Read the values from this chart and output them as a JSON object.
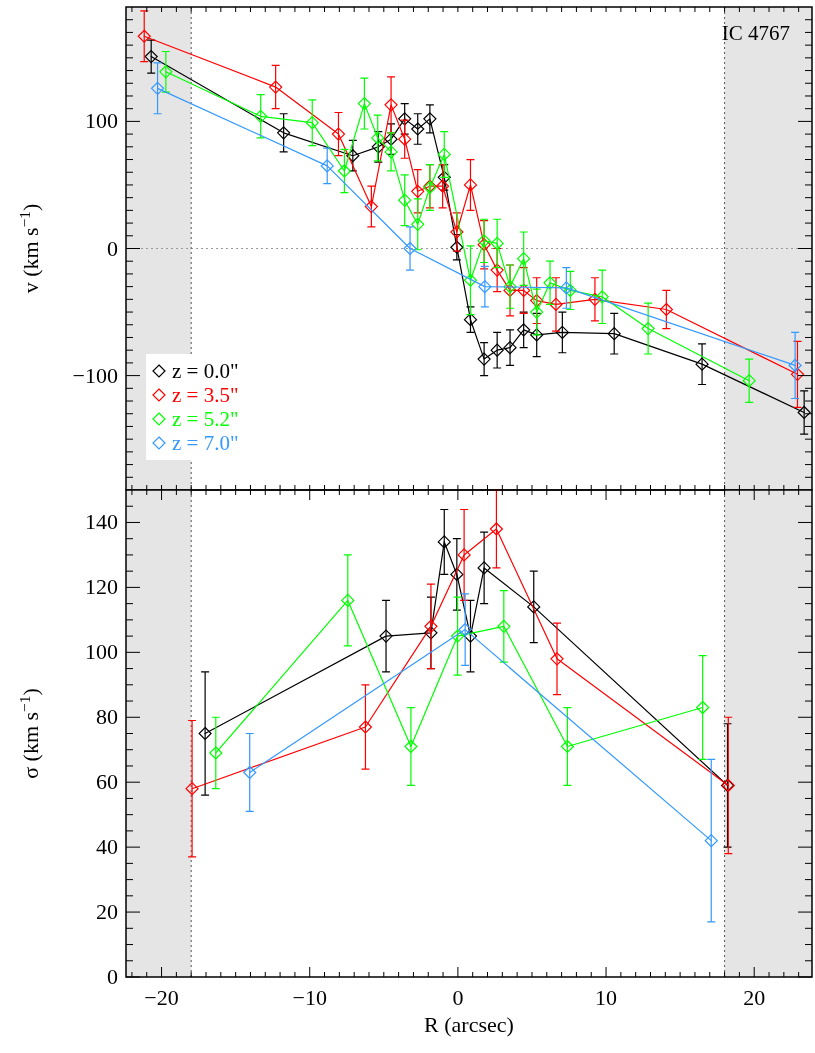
{
  "chart_data": [
    {
      "type": "line",
      "ylabel": "v (km s$^{−1}$)",
      "annotations": [
        "IC 4767"
      ],
      "xlim": [
        -22.4,
        23.9
      ],
      "ylim": [
        -190,
        190
      ],
      "tick_labels": "y",
      "marker": "diamond",
      "line_style": "solid",
      "legend": "bottom left",
      "xticks": [
        {
          "value": -22,
          "label": null
        },
        {
          "value": -21,
          "label": null
        },
        {
          "value": -20,
          "label": null
        },
        {
          "value": -19,
          "label": null
        },
        {
          "value": -18,
          "label": null
        },
        {
          "value": -17,
          "label": null
        },
        {
          "value": -16,
          "label": null
        },
        {
          "value": -15,
          "label": null
        },
        {
          "value": -14,
          "label": null
        },
        {
          "value": -13,
          "label": null
        },
        {
          "value": -12,
          "label": null
        },
        {
          "value": -11,
          "label": null
        },
        {
          "value": -10,
          "label": null
        },
        {
          "value": -9,
          "label": null
        },
        {
          "value": -8,
          "label": null
        },
        {
          "value": -7,
          "label": null
        },
        {
          "value": -6,
          "label": null
        },
        {
          "value": -5,
          "label": null
        },
        {
          "value": -4,
          "label": null
        },
        {
          "value": -3,
          "label": null
        },
        {
          "value": -2,
          "label": null
        },
        {
          "value": -1,
          "label": null
        },
        {
          "value": 0,
          "label": null
        },
        {
          "value": 1,
          "label": null
        },
        {
          "value": 2,
          "label": null
        },
        {
          "value": 3,
          "label": null
        },
        {
          "value": 4,
          "label": null
        },
        {
          "value": 5,
          "label": null
        },
        {
          "value": 6,
          "label": null
        },
        {
          "value": 7,
          "label": null
        },
        {
          "value": 8,
          "label": null
        },
        {
          "value": 9,
          "label": null
        },
        {
          "value": 10,
          "label": null
        },
        {
          "value": 11,
          "label": null
        },
        {
          "value": 12,
          "label": null
        },
        {
          "value": 13,
          "label": null
        },
        {
          "value": 14,
          "label": null
        },
        {
          "value": 15,
          "label": null
        },
        {
          "value": 16,
          "label": null
        },
        {
          "value": 17,
          "label": null
        },
        {
          "value": 18,
          "label": null
        },
        {
          "value": 19,
          "label": null
        },
        {
          "value": 20,
          "label": null
        },
        {
          "value": 21,
          "label": null
        },
        {
          "value": 22,
          "label": null
        },
        {
          "value": 23,
          "label": null
        }
      ],
      "yticks": [
        {
          "value": -180,
          "label": null
        },
        {
          "value": -170,
          "label": null
        },
        {
          "value": -160,
          "label": null
        },
        {
          "value": -150,
          "label": null
        },
        {
          "value": -140,
          "label": null
        },
        {
          "value": -130,
          "label": null
        },
        {
          "value": -120,
          "label": null
        },
        {
          "value": -110,
          "label": null
        },
        {
          "value": -100,
          "label": "−100"
        },
        {
          "value": -90,
          "label": null
        },
        {
          "value": -80,
          "label": null
        },
        {
          "value": -70,
          "label": null
        },
        {
          "value": -60,
          "label": null
        },
        {
          "value": -50,
          "label": null
        },
        {
          "value": -40,
          "label": null
        },
        {
          "value": -30,
          "label": null
        },
        {
          "value": -20,
          "label": null
        },
        {
          "value": -10,
          "label": null
        },
        0,
        {
          "value": 10,
          "label": null
        },
        {
          "value": 20,
          "label": null
        },
        {
          "value": 30,
          "label": null
        },
        {
          "value": 40,
          "label": null
        },
        {
          "value": 50,
          "label": null
        },
        {
          "value": 60,
          "label": null
        },
        {
          "value": 70,
          "label": null
        },
        {
          "value": 80,
          "label": null
        },
        {
          "value": 90,
          "label": null
        },
        100,
        {
          "value": 110,
          "label": null
        },
        {
          "value": 120,
          "label": null
        },
        {
          "value": 130,
          "label": null
        },
        {
          "value": 140,
          "label": null
        },
        {
          "value": 150,
          "label": null
        },
        {
          "value": 160,
          "label": null
        },
        {
          "value": 170,
          "label": null
        },
        {
          "value": 180,
          "label": null
        }
      ],
      "bands": [
        {
          "axis": "x",
          "from": -22.4,
          "to": -18,
          "color": "#e5e5e5"
        },
        {
          "axis": "x",
          "from": 18,
          "to": 23.9,
          "color": "#e5e5e5"
        }
      ],
      "ref_lines": [
        {
          "axis": "y",
          "value": 0,
          "color": "#999999",
          "line_style": "dotted"
        },
        {
          "axis": "x",
          "value": -18,
          "color": "#555555",
          "line_style": "dotted"
        },
        {
          "axis": "x",
          "value": 18,
          "color": "#555555",
          "line_style": "dotted"
        }
      ],
      "series": [
        {
          "name": "z = 0.0\"",
          "color": "#000000",
          "x": [
            -20.7,
            -11.76,
            -7.09,
            -5.37,
            -4.51,
            -3.59,
            -2.71,
            -1.89,
            -0.92,
            -0.07,
            0.85,
            1.77,
            2.65,
            3.52,
            4.44,
            5.32,
            7.05,
            10.55,
            16.48,
            23.37
          ],
          "values": [
            151,
            91,
            73,
            80,
            86,
            102,
            94,
            102,
            56,
            1,
            -56,
            -87,
            -80,
            -78,
            -64,
            -68,
            -66,
            -67,
            -91,
            -129
          ],
          "errors": [
            13,
            15,
            12,
            12,
            12,
            12,
            12,
            11,
            10,
            10,
            10,
            13,
            14,
            14,
            14,
            17,
            16,
            16,
            16,
            17
          ]
        },
        {
          "name": "z = 3.5\"",
          "color": "#ff0000",
          "x": [
            -21.17,
            -12.3,
            -8.06,
            -5.84,
            -4.51,
            -3.59,
            -2.71,
            -1.89,
            -1.03,
            -0.07,
            0.85,
            1.77,
            2.65,
            3.52,
            4.44,
            5.32,
            6.62,
            9.25,
            14.07,
            22.92
          ],
          "values": [
            167,
            127,
            90,
            33,
            113,
            86,
            45,
            49,
            49,
            13,
            50,
            3,
            -17,
            -33,
            -33,
            -41,
            -44,
            -40,
            -48,
            -99
          ],
          "errors": [
            20,
            17,
            17,
            16,
            22,
            15,
            17,
            17,
            17,
            15,
            20,
            19,
            17,
            20,
            18,
            18,
            21,
            17,
            15,
            26
          ]
        },
        {
          "name": "z = 5.2\"",
          "color": "#00ff00",
          "x": [
            -19.71,
            -13.31,
            -9.83,
            -7.66,
            -6.31,
            -5.41,
            -4.51,
            -3.59,
            -2.71,
            -1.89,
            -0.92,
            0.85,
            1.77,
            2.65,
            3.52,
            4.44,
            5.32,
            6.22,
            7.59,
            9.74,
            12.84,
            19.66
          ],
          "values": [
            139,
            104,
            99,
            61,
            114,
            87,
            76,
            38,
            19,
            48,
            74,
            -25,
            6,
            4,
            -30,
            -8,
            -50,
            -27,
            -33,
            -38,
            -63,
            -104
          ],
          "errors": [
            16,
            17,
            18,
            17,
            20,
            18,
            15,
            20,
            20,
            18,
            18,
            27,
            17,
            19,
            17,
            21,
            18,
            17,
            15,
            21,
            20,
            17
          ]
        },
        {
          "name": "z = 7.0\"",
          "color": "#3399ff",
          "x": [
            -20.27,
            -8.82,
            -3.23,
            1.82,
            7.32,
            22.76
          ],
          "values": [
            126,
            65,
            0,
            -30,
            -31,
            -92
          ],
          "errors": [
            20,
            14,
            17,
            16,
            16,
            26
          ]
        }
      ]
    },
    {
      "type": "line",
      "xlabel": "R (arcsec)",
      "ylabel": "σ (km s$^{−1}$)",
      "xlim": [
        -22.4,
        23.9
      ],
      "ylim": [
        0,
        150
      ],
      "marker": "diamond",
      "line_style": "solid",
      "ref_lines": [
        {
          "axis": "x",
          "value": -18,
          "color": "#555555",
          "line_style": "dotted"
        },
        {
          "axis": "x",
          "value": 18,
          "color": "#555555",
          "line_style": "dotted"
        }
      ],
      "xticks": [
        {
          "value": -22,
          "label": null
        },
        {
          "value": -21,
          "label": null
        },
        {
          "value": -20,
          "label": "−20"
        },
        {
          "value": -19,
          "label": null
        },
        {
          "value": -18,
          "label": null
        },
        {
          "value": -17,
          "label": null
        },
        {
          "value": -16,
          "label": null
        },
        {
          "value": -15,
          "label": null
        },
        {
          "value": -14,
          "label": null
        },
        {
          "value": -13,
          "label": null
        },
        {
          "value": -12,
          "label": null
        },
        {
          "value": -11,
          "label": null
        },
        {
          "value": -10,
          "label": "−10"
        },
        {
          "value": -9,
          "label": null
        },
        {
          "value": -8,
          "label": null
        },
        {
          "value": -7,
          "label": null
        },
        {
          "value": -6,
          "label": null
        },
        {
          "value": -5,
          "label": null
        },
        {
          "value": -4,
          "label": null
        },
        {
          "value": -3,
          "label": null
        },
        {
          "value": -2,
          "label": null
        },
        {
          "value": -1,
          "label": null
        },
        0,
        {
          "value": 1,
          "label": null
        },
        {
          "value": 2,
          "label": null
        },
        {
          "value": 3,
          "label": null
        },
        {
          "value": 4,
          "label": null
        },
        {
          "value": 5,
          "label": null
        },
        {
          "value": 6,
          "label": null
        },
        {
          "value": 7,
          "label": null
        },
        {
          "value": 8,
          "label": null
        },
        {
          "value": 9,
          "label": null
        },
        10,
        {
          "value": 11,
          "label": null
        },
        {
          "value": 12,
          "label": null
        },
        {
          "value": 13,
          "label": null
        },
        {
          "value": 14,
          "label": null
        },
        {
          "value": 15,
          "label": null
        },
        {
          "value": 16,
          "label": null
        },
        {
          "value": 17,
          "label": null
        },
        {
          "value": 18,
          "label": null
        },
        {
          "value": 19,
          "label": null
        },
        20,
        {
          "value": 21,
          "label": null
        },
        {
          "value": 22,
          "label": null
        },
        {
          "value": 23,
          "label": null
        }
      ],
      "yticks": [
        0,
        {
          "value": 5,
          "label": null
        },
        {
          "value": 10,
          "label": null
        },
        {
          "value": 15,
          "label": null
        },
        20,
        {
          "value": 25,
          "label": null
        },
        {
          "value": 30,
          "label": null
        },
        {
          "value": 35,
          "label": null
        },
        40,
        {
          "value": 45,
          "label": null
        },
        {
          "value": 50,
          "label": null
        },
        {
          "value": 55,
          "label": null
        },
        60,
        {
          "value": 65,
          "label": null
        },
        {
          "value": 70,
          "label": null
        },
        {
          "value": 75,
          "label": null
        },
        80,
        {
          "value": 85,
          "label": null
        },
        {
          "value": 90,
          "label": null
        },
        {
          "value": 95,
          "label": null
        },
        100,
        {
          "value": 105,
          "label": null
        },
        {
          "value": 110,
          "label": null
        },
        {
          "value": 115,
          "label": null
        },
        120,
        {
          "value": 125,
          "label": null
        },
        {
          "value": 130,
          "label": null
        },
        {
          "value": 135,
          "label": null
        },
        140,
        {
          "value": 145,
          "label": null
        }
      ],
      "bands": [
        {
          "axis": "x",
          "from": -22.4,
          "to": -18,
          "color": "#e5e5e5"
        },
        {
          "axis": "x",
          "from": 18,
          "to": 23.9,
          "color": "#e5e5e5"
        }
      ],
      "series": [
        {
          "color": "#000000",
          "x": [
            -17.06,
            -4.85,
            -1.82,
            -0.92,
            -0.07,
            0.85,
            1.77,
            5.12,
            18.2
          ],
          "values": [
            75,
            105,
            106,
            134,
            124,
            105,
            126,
            114,
            59
          ],
          "errors": [
            19,
            11,
            11,
            10,
            11,
            11,
            11,
            11,
            19
          ]
        },
        {
          "color": "#ff0000",
          "x": [
            -17.94,
            -6.24,
            -1.82,
            0.42,
            2.6,
            6.69,
            18.25
          ],
          "values": [
            58,
            77,
            108,
            130,
            138,
            98,
            59
          ],
          "errors": [
            21,
            13,
            13,
            14,
            12,
            11,
            21
          ]
        },
        {
          "color": "#00ff00",
          "x": [
            -16.34,
            -7.43,
            -3.17,
            -0.02,
            3.1,
            7.39,
            16.52
          ],
          "values": [
            69,
            116,
            71,
            105,
            108,
            71,
            83
          ],
          "errors": [
            11,
            14,
            12,
            12,
            11,
            12,
            16
          ]
        },
        {
          "color": "#3399ff",
          "x": [
            -14.05,
            0.49,
            17.1
          ],
          "values": [
            63,
            107,
            42
          ],
          "errors": [
            12,
            11,
            25
          ]
        }
      ]
    }
  ]
}
